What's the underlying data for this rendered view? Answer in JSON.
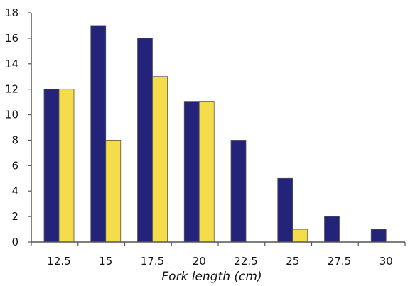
{
  "chart_data": {
    "type": "bar",
    "title": "",
    "xlabel": "Fork length (cm)",
    "ylabel": "",
    "categories": [
      "12.5",
      "15",
      "17.5",
      "20",
      "22.5",
      "25",
      "27.5",
      "30"
    ],
    "ylim": [
      0,
      18
    ],
    "yticks": [
      0,
      2,
      4,
      6,
      8,
      10,
      12,
      14,
      16,
      18
    ],
    "series": [
      {
        "values": [
          12,
          17,
          16,
          11,
          8,
          5,
          2,
          1
        ],
        "color": "#23237a"
      },
      {
        "values": [
          12,
          8,
          13,
          11,
          0,
          1,
          0,
          0
        ],
        "color": "#f5dc4a"
      }
    ],
    "grid": false,
    "legend": "none"
  }
}
